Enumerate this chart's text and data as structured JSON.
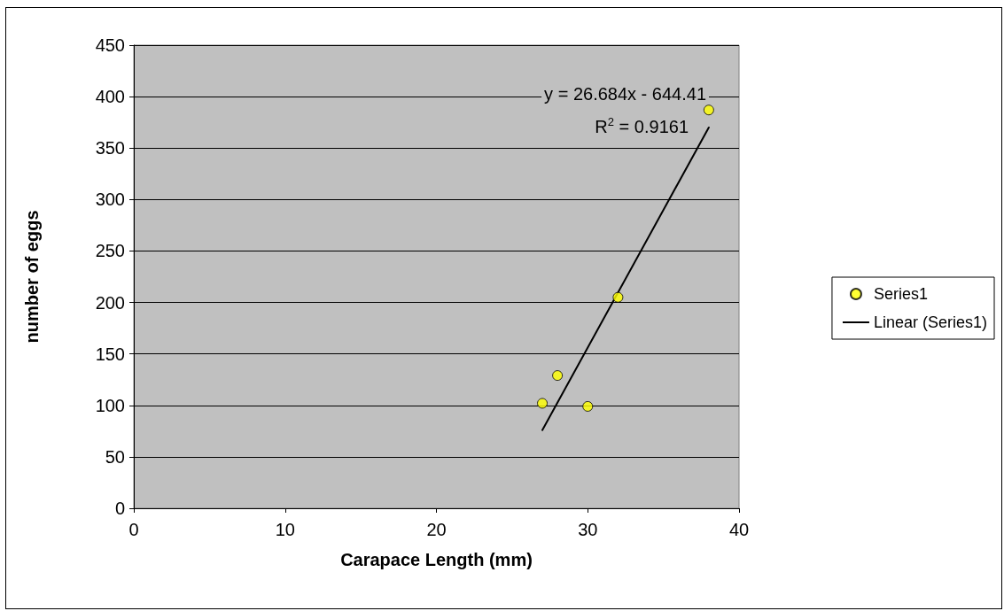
{
  "chart_data": {
    "type": "scatter",
    "xlabel": "Carapace Length (mm)",
    "ylabel": "number of eggs",
    "xlim": [
      0,
      40
    ],
    "xticks": [
      0,
      10,
      20,
      30,
      40
    ],
    "ylim": [
      0,
      450
    ],
    "yticks": [
      0,
      50,
      100,
      150,
      200,
      250,
      300,
      350,
      400,
      450
    ],
    "grid": "y",
    "legend": "right",
    "marker": "circle",
    "annotations": [
      "y = 26.684x - 644.41",
      "R$^{2}$ = 0.9161"
    ],
    "series": [
      {
        "name": "Series1",
        "type": "scatter",
        "color": "#ffff00",
        "x": [
          27,
          28,
          30,
          32,
          38
        ],
        "values": [
          102,
          129,
          99,
          205,
          387
        ]
      },
      {
        "name": "Linear (Series1)",
        "type": "line",
        "color": "#000000",
        "marker": "none",
        "line_style": "solid",
        "x": [
          27,
          38
        ],
        "values": [
          76,
          370
        ]
      }
    ]
  }
}
